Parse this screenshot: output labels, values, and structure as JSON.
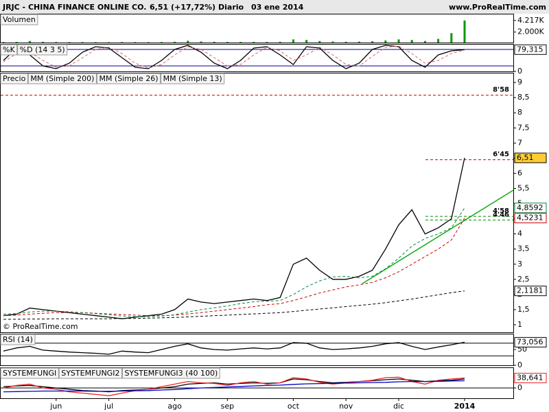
{
  "header": {
    "title": "JRJC - CHINA FINANCE ONLINE CO.",
    "quote": "6,51 (+17,72%)",
    "period": "Diario",
    "date": "03 ene 2014",
    "site": "www.ProRealTime.com"
  },
  "copyright": "© ProRealTime.com",
  "chart_data": [
    {
      "type": "bar",
      "ylim": [
        0,
        5500
      ],
      "yticks": [
        {
          "value": 4217,
          "label": "4.217K"
        },
        {
          "value": 2000,
          "label": "2.000K"
        }
      ],
      "series": [
        {
          "name": "Volumen",
          "color": "#009900",
          "values": [
            100,
            120,
            300,
            150,
            100,
            80,
            90,
            80,
            70,
            100,
            90,
            80,
            100,
            150,
            350,
            200,
            150,
            120,
            130,
            140,
            120,
            150,
            600,
            500,
            300,
            200,
            150,
            180,
            250,
            400,
            600,
            500,
            300,
            700,
            1800,
            4217
          ]
        }
      ]
    },
    {
      "type": "line",
      "ylim": [
        0,
        100
      ],
      "yticks": [
        0
      ],
      "levels": [
        {
          "value": 80,
          "color": "#000080"
        },
        {
          "value": 20,
          "color": "#000080"
        }
      ],
      "series": [
        {
          "name": "%K",
          "color": "#000000",
          "values": [
            40,
            85,
            60,
            20,
            10,
            30,
            70,
            90,
            85,
            50,
            15,
            10,
            40,
            80,
            95,
            70,
            30,
            10,
            40,
            85,
            90,
            60,
            25,
            90,
            85,
            40,
            10,
            30,
            80,
            95,
            90,
            40,
            15,
            60,
            75,
            79.315
          ],
          "value_labels": [
            null,
            null,
            null,
            null,
            null,
            null,
            null,
            null,
            null,
            null,
            null,
            null,
            null,
            null,
            null,
            null,
            null,
            null,
            null,
            null,
            null,
            null,
            null,
            null,
            null,
            null,
            null,
            null,
            null,
            null,
            null,
            null,
            null,
            null,
            null,
            "79,315"
          ]
        },
        {
          "name": "%D (14 3 5)",
          "color": "#dd6666",
          "style": "dashed",
          "values": [
            35,
            65,
            70,
            40,
            15,
            20,
            50,
            80,
            88,
            65,
            30,
            12,
            25,
            60,
            90,
            80,
            50,
            20,
            25,
            60,
            88,
            75,
            40,
            60,
            88,
            60,
            25,
            20,
            55,
            88,
            92,
            65,
            30,
            40,
            65,
            78
          ]
        }
      ]
    },
    {
      "type": "line",
      "ylim": [
        0.75,
        9.32
      ],
      "yticks": [
        1,
        {
          "value": 1.5,
          "label": "1,5"
        },
        2,
        {
          "value": 2.5,
          "label": "2,5"
        },
        3,
        {
          "value": 3.5,
          "label": "3,5"
        },
        4,
        {
          "value": 4.5,
          "label": "4,5"
        },
        5,
        {
          "value": 5.5,
          "label": "5,5"
        },
        6,
        {
          "value": 6.5,
          "label": "6,5"
        },
        7,
        {
          "value": 7.5,
          "label": "7,5"
        },
        8,
        {
          "value": 8.5,
          "label": "8,5"
        },
        9
      ],
      "levels": [
        {
          "value": 8.58,
          "label": "8'58",
          "color": "#cc0000"
        },
        {
          "value": 6.45,
          "label": "6'45",
          "color": "#cc0000"
        },
        {
          "value": 4.58,
          "label": "4'58",
          "color": "#008800"
        },
        {
          "value": 4.46,
          "label": "4'46",
          "color": "#008800"
        }
      ],
      "series": [
        {
          "name": "Precio",
          "color": "#000000",
          "values": [
            1.3,
            1.35,
            1.55,
            1.5,
            1.45,
            1.4,
            1.35,
            1.3,
            1.25,
            1.2,
            1.25,
            1.3,
            1.35,
            1.5,
            1.85,
            1.75,
            1.7,
            1.75,
            1.8,
            1.85,
            1.8,
            1.9,
            3.0,
            3.2,
            2.8,
            2.5,
            2.5,
            2.6,
            2.8,
            3.5,
            4.3,
            4.8,
            4.0,
            4.2,
            4.5,
            6.51
          ],
          "value_labels": [
            null,
            null,
            null,
            null,
            null,
            null,
            null,
            null,
            null,
            null,
            null,
            null,
            null,
            null,
            null,
            null,
            null,
            null,
            null,
            null,
            null,
            null,
            null,
            null,
            null,
            null,
            null,
            null,
            null,
            null,
            null,
            null,
            null,
            null,
            null,
            "6,51"
          ]
        },
        {
          "name": "MM (Simple 200)",
          "color": "#000000",
          "style": "dashed",
          "values": [
            1.18,
            1.18,
            1.19,
            1.19,
            1.2,
            1.2,
            1.2,
            1.2,
            1.2,
            1.21,
            1.21,
            1.22,
            1.23,
            1.24,
            1.26,
            1.28,
            1.3,
            1.32,
            1.34,
            1.36,
            1.38,
            1.4,
            1.44,
            1.48,
            1.52,
            1.56,
            1.6,
            1.64,
            1.68,
            1.73,
            1.79,
            1.85,
            1.92,
            1.99,
            2.06,
            2.1181
          ],
          "value_labels": [
            null,
            null,
            null,
            null,
            null,
            null,
            null,
            null,
            null,
            null,
            null,
            null,
            null,
            null,
            null,
            null,
            null,
            null,
            null,
            null,
            null,
            null,
            null,
            null,
            null,
            null,
            null,
            null,
            null,
            null,
            null,
            null,
            null,
            null,
            null,
            "2,1181"
          ]
        },
        {
          "name": "MM (Simple 26)",
          "color": "#cc0000",
          "style": "dashed",
          "values": [
            1.3,
            1.32,
            1.35,
            1.38,
            1.4,
            1.4,
            1.4,
            1.38,
            1.36,
            1.34,
            1.32,
            1.3,
            1.3,
            1.32,
            1.36,
            1.4,
            1.45,
            1.5,
            1.55,
            1.6,
            1.66,
            1.7,
            1.8,
            1.92,
            2.05,
            2.15,
            2.25,
            2.32,
            2.4,
            2.55,
            2.75,
            3.0,
            3.25,
            3.5,
            3.8,
            4.5231
          ],
          "value_labels": [
            null,
            null,
            null,
            null,
            null,
            null,
            null,
            null,
            null,
            null,
            null,
            null,
            null,
            null,
            null,
            null,
            null,
            null,
            null,
            null,
            null,
            null,
            null,
            null,
            null,
            null,
            null,
            null,
            null,
            null,
            null,
            null,
            null,
            null,
            null,
            "4,5231"
          ]
        },
        {
          "name": "MM (Simple 13)",
          "color": "#008844",
          "style": "dashed",
          "values": [
            1.35,
            1.37,
            1.42,
            1.45,
            1.45,
            1.43,
            1.4,
            1.37,
            1.33,
            1.29,
            1.27,
            1.27,
            1.29,
            1.33,
            1.42,
            1.5,
            1.56,
            1.62,
            1.7,
            1.76,
            1.78,
            1.8,
            2.0,
            2.25,
            2.45,
            2.58,
            2.6,
            2.55,
            2.6,
            2.85,
            3.2,
            3.6,
            3.85,
            4.0,
            4.2,
            4.8592
          ],
          "value_labels": [
            null,
            null,
            null,
            null,
            null,
            null,
            null,
            null,
            null,
            null,
            null,
            null,
            null,
            null,
            null,
            null,
            null,
            null,
            null,
            null,
            null,
            null,
            null,
            null,
            null,
            null,
            null,
            null,
            null,
            null,
            null,
            null,
            null,
            null,
            null,
            "4,8592"
          ]
        }
      ]
    },
    {
      "type": "line",
      "ylim": [
        0,
        100
      ],
      "yticks": [
        50,
        0
      ],
      "levels": [
        {
          "value": 70,
          "color": "#000000"
        },
        {
          "value": 30,
          "color": "#000000"
        }
      ],
      "series": [
        {
          "name": "RSI (14)",
          "color": "#000000",
          "values": [
            45,
            55,
            60,
            48,
            45,
            42,
            40,
            38,
            35,
            45,
            42,
            40,
            50,
            60,
            68,
            55,
            50,
            48,
            52,
            55,
            52,
            55,
            72,
            70,
            55,
            50,
            52,
            55,
            60,
            68,
            72,
            60,
            50,
            58,
            65,
            73.056
          ],
          "value_labels": [
            null,
            null,
            null,
            null,
            null,
            null,
            null,
            null,
            null,
            null,
            null,
            null,
            null,
            null,
            null,
            null,
            null,
            null,
            null,
            null,
            null,
            null,
            null,
            null,
            null,
            null,
            null,
            null,
            null,
            null,
            null,
            null,
            null,
            null,
            null,
            "73,056"
          ]
        }
      ]
    },
    {
      "type": "line",
      "ylim": [
        -40,
        80
      ],
      "yticks": [
        0
      ],
      "levels": [
        {
          "value": 0,
          "color": "#000000"
        }
      ],
      "categories": [
        null,
        null,
        null,
        null,
        "jun",
        null,
        null,
        null,
        "jul",
        null,
        null,
        null,
        null,
        "ago",
        null,
        null,
        null,
        "sep",
        null,
        null,
        null,
        null,
        "oct",
        null,
        null,
        null,
        "nov",
        null,
        null,
        null,
        "dic",
        null,
        null,
        null,
        null,
        "2014"
      ],
      "series": [
        {
          "name": "SYSTEMFUNGI",
          "color": "#000000",
          "values": [
            5,
            8,
            10,
            5,
            0,
            -5,
            -10,
            -12,
            -15,
            -10,
            -8,
            -5,
            0,
            5,
            15,
            18,
            20,
            15,
            18,
            20,
            18,
            20,
            35,
            32,
            25,
            20,
            22,
            25,
            28,
            32,
            35,
            30,
            25,
            28,
            30,
            35
          ]
        },
        {
          "name": "SYSTEMFUNGI2",
          "color": "#ee2222",
          "values": [
            0,
            10,
            15,
            0,
            -5,
            -15,
            -20,
            -25,
            -30,
            -20,
            -10,
            -5,
            5,
            15,
            25,
            20,
            18,
            10,
            20,
            25,
            15,
            20,
            40,
            35,
            22,
            15,
            20,
            25,
            30,
            40,
            42,
            25,
            15,
            30,
            35,
            38.641
          ],
          "value_labels": [
            null,
            null,
            null,
            null,
            null,
            null,
            null,
            null,
            null,
            null,
            null,
            null,
            null,
            null,
            null,
            null,
            null,
            null,
            null,
            null,
            null,
            null,
            null,
            null,
            null,
            null,
            null,
            null,
            null,
            null,
            null,
            null,
            null,
            null,
            null,
            "38,641"
          ]
        },
        {
          "name": "SYSTEMFUNGI3 (40 100)",
          "color": "#0000cc",
          "values": [
            -15,
            -14,
            -13,
            -12,
            -12,
            -12,
            -12,
            -13,
            -13,
            -12,
            -11,
            -10,
            -8,
            -6,
            -3,
            0,
            2,
            4,
            6,
            8,
            10,
            11,
            14,
            16,
            17,
            18,
            19,
            20,
            21,
            22,
            24,
            25,
            25,
            26,
            27,
            28
          ]
        }
      ]
    }
  ]
}
